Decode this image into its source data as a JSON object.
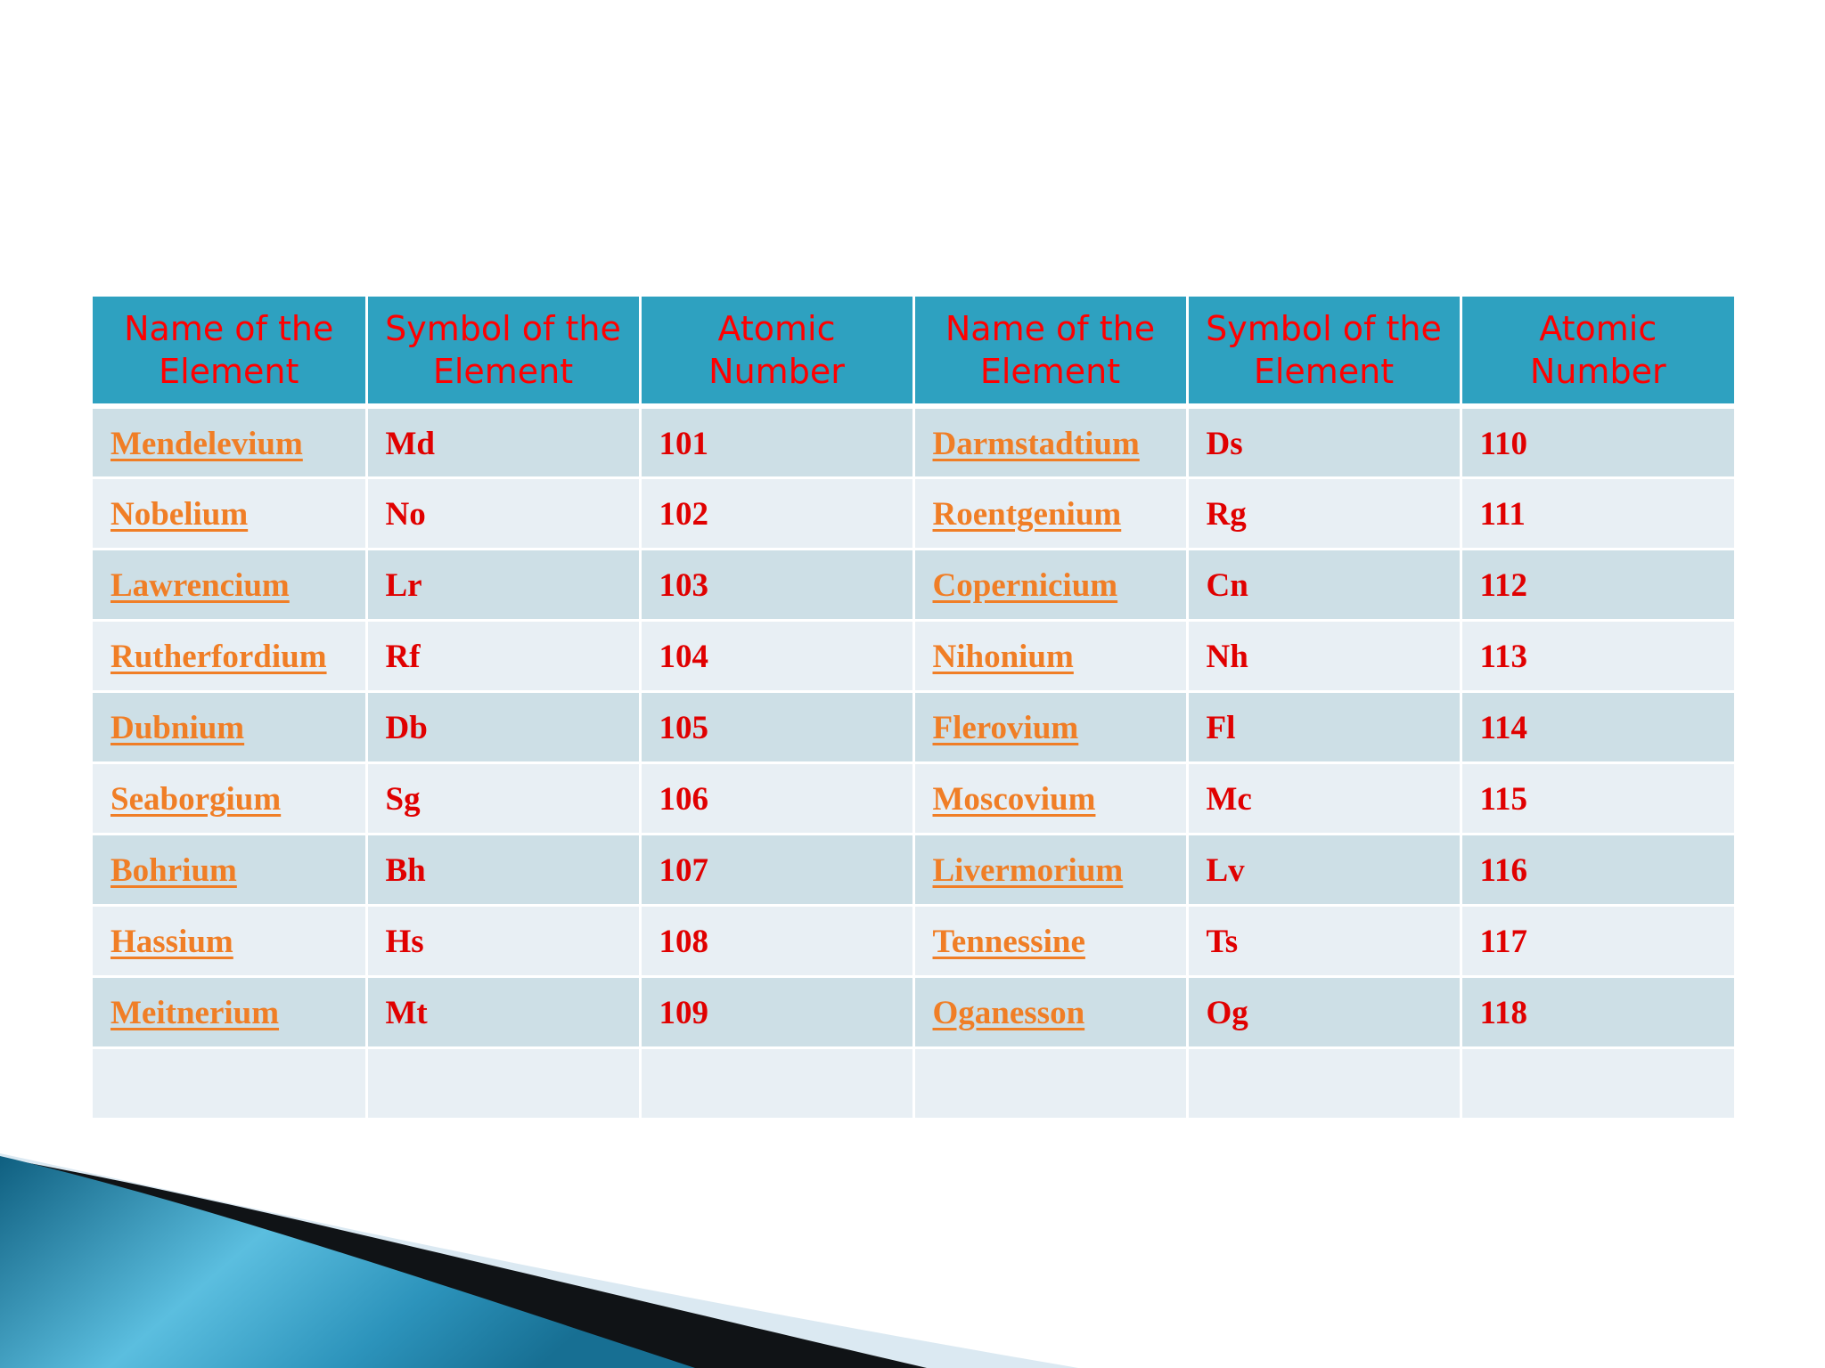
{
  "colors": {
    "header_bg": "#2ea1c0",
    "header_text": "#ff0000",
    "row_odd": "#cddfe6",
    "row_even": "#e8eff4",
    "link": "#f07e26",
    "cell_text": "#e00000"
  },
  "table": {
    "headers": [
      "Name of the Element",
      "Symbol of the Element",
      "Atomic Number",
      "Name of the Element",
      "Symbol of the Element",
      "Atomic Number"
    ],
    "rows": [
      [
        "Mendelevium",
        "Md",
        "101",
        "Darmstadtium",
        "Ds",
        "110"
      ],
      [
        "Nobelium",
        "No",
        "102",
        "Roentgenium",
        "Rg",
        "111"
      ],
      [
        "Lawrencium",
        "Lr",
        "103",
        "Copernicium",
        "Cn",
        "112"
      ],
      [
        "Rutherfordium",
        "Rf",
        "104",
        "Nihonium",
        "Nh",
        "113"
      ],
      [
        "Dubnium",
        "Db",
        "105",
        "Flerovium",
        "Fl",
        "114"
      ],
      [
        "Seaborgium",
        "Sg",
        "106",
        "Moscovium",
        "Mc",
        "115"
      ],
      [
        "Bohrium",
        "Bh",
        "107",
        "Livermorium",
        "Lv",
        "116"
      ],
      [
        "Hassium",
        "Hs",
        "108",
        "Tennessine",
        "Ts",
        "117"
      ],
      [
        "Meitnerium",
        "Mt",
        "109",
        "Oganesson",
        "Og",
        "118"
      ],
      [
        "",
        "",
        "",
        "",
        "",
        ""
      ]
    ]
  }
}
